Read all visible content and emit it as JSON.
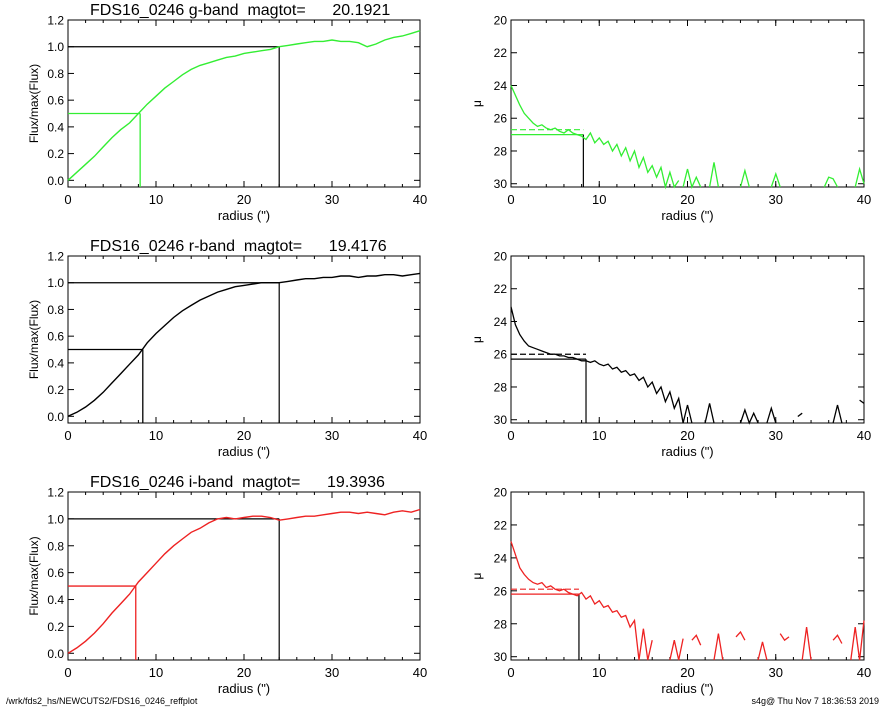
{
  "colors": {
    "g": "#33ee33",
    "r": "#000000",
    "i": "#ee2222",
    "axes": "#000000",
    "ref": "#000000"
  },
  "footer": {
    "left": "/wrk/fds2_hs/NEWCUTS2/FDS16_0246_reffplot",
    "right": "s4g@  Thu Nov  7 18:36:53 2019"
  },
  "chart_data": [
    {
      "type": "line",
      "panel": "g-band growth curve",
      "title": "FDS16_0246 g-band  magtot=      20.1921",
      "xlabel": "radius (\")",
      "ylabel": "Flux/max(Flux)",
      "xlim": [
        0,
        40
      ],
      "ylim": [
        -0.05,
        1.2
      ],
      "xticks": [
        "0",
        "10",
        "20",
        "30",
        "40"
      ],
      "yticks": [
        "0.0",
        "0.2",
        "0.4",
        "0.6",
        "0.8",
        "1.0",
        "1.2"
      ],
      "grid": false,
      "color": "#33ee33",
      "half_light_radius": 8.2,
      "half_light_flux": 0.5,
      "total_radius": 24.0,
      "total_flux": 1.0,
      "series": [
        {
          "x": [
            0,
            1,
            2,
            3,
            4,
            5,
            6,
            7,
            8,
            9,
            10,
            11,
            12,
            13,
            14,
            15,
            16,
            17,
            18,
            19,
            20,
            21,
            22,
            23,
            24,
            25,
            26,
            27,
            28,
            29,
            30,
            31,
            32,
            33,
            34,
            35,
            36,
            37,
            38,
            39,
            40
          ],
          "y": [
            0.0,
            0.06,
            0.12,
            0.18,
            0.25,
            0.32,
            0.38,
            0.43,
            0.5,
            0.57,
            0.63,
            0.69,
            0.74,
            0.79,
            0.83,
            0.86,
            0.88,
            0.9,
            0.92,
            0.93,
            0.95,
            0.96,
            0.97,
            0.98,
            1.0,
            1.01,
            1.02,
            1.03,
            1.04,
            1.04,
            1.05,
            1.04,
            1.04,
            1.03,
            1.0,
            1.02,
            1.05,
            1.07,
            1.08,
            1.1,
            1.12
          ]
        }
      ]
    },
    {
      "type": "line",
      "panel": "g-band surface brightness profile",
      "title": "",
      "xlabel": "radius (\")",
      "ylabel": "μ",
      "xlim": [
        0,
        40
      ],
      "ylim": [
        30.2,
        20
      ],
      "xticks": [
        "0",
        "10",
        "20",
        "30",
        "40"
      ],
      "yticks": [
        "20",
        "22",
        "24",
        "26",
        "28",
        "30"
      ],
      "grid": false,
      "color": "#33ee33",
      "mu_eff": 27.0,
      "mu_mean_eff": 26.7,
      "r_eff": 8.2,
      "series": [
        {
          "segments": [
            {
              "x": [
                0,
                0.5,
                1,
                1.5,
                2,
                2.5,
                3,
                3.5,
                4,
                4.5,
                5,
                5.5,
                6,
                6.5,
                7,
                7.5,
                8,
                8.5,
                9,
                9.5,
                10,
                10.5,
                11,
                11.5,
                12,
                12.5,
                13,
                13.5,
                14,
                14.5,
                15,
                15.5,
                16,
                16.5,
                17,
                17.5,
                18,
                18.5,
                19
              ],
              "y": [
                24.0,
                24.6,
                25.2,
                25.7,
                26.0,
                26.3,
                26.5,
                26.4,
                26.6,
                26.7,
                26.6,
                26.8,
                26.9,
                26.7,
                26.9,
                27.0,
                27.1,
                27.3,
                26.9,
                27.5,
                27.2,
                27.6,
                27.4,
                28.0,
                27.6,
                28.3,
                27.8,
                28.6,
                28.0,
                29.0,
                28.4,
                29.3,
                28.9,
                29.6,
                29.0,
                30.2,
                29.3,
                30.2,
                29.8
              ]
            },
            {
              "x": [
                19.5,
                20,
                20.5,
                21,
                21.5
              ],
              "y": [
                30.2,
                29.1,
                30.2,
                29.6,
                30.2
              ]
            },
            {
              "x": [
                22.5,
                23,
                23.5
              ],
              "y": [
                30.2,
                28.7,
                30.2
              ]
            },
            {
              "x": [
                26,
                26.5,
                27
              ],
              "y": [
                30.2,
                29.2,
                30.2
              ]
            },
            {
              "x": [
                29.5,
                30,
                30.5
              ],
              "y": [
                30.2,
                29.4,
                30.2
              ]
            },
            {
              "x": [
                35.5,
                36,
                36.5,
                37
              ],
              "y": [
                30.2,
                29.6,
                29.7,
                30.2
              ]
            },
            {
              "x": [
                39,
                39.5,
                40
              ],
              "y": [
                30.2,
                29.1,
                30.0
              ]
            }
          ]
        }
      ]
    },
    {
      "type": "line",
      "panel": "r-band growth curve",
      "title": "FDS16_0246 r-band  magtot=      19.4176",
      "xlabel": "radius (\")",
      "ylabel": "Flux/max(Flux)",
      "xlim": [
        0,
        40
      ],
      "ylim": [
        -0.05,
        1.2
      ],
      "xticks": [
        "0",
        "10",
        "20",
        "30",
        "40"
      ],
      "yticks": [
        "0.0",
        "0.2",
        "0.4",
        "0.6",
        "0.8",
        "1.0",
        "1.2"
      ],
      "grid": false,
      "color": "#000000",
      "half_light_radius": 8.5,
      "half_light_flux": 0.5,
      "total_radius": 24.0,
      "total_flux": 1.0,
      "series": [
        {
          "x": [
            0,
            1,
            2,
            3,
            4,
            5,
            6,
            7,
            8,
            9,
            10,
            11,
            12,
            13,
            14,
            15,
            16,
            17,
            18,
            19,
            20,
            21,
            22,
            23,
            24,
            25,
            26,
            27,
            28,
            29,
            30,
            31,
            32,
            33,
            34,
            35,
            36,
            37,
            38,
            39,
            40
          ],
          "y": [
            0.0,
            0.03,
            0.07,
            0.12,
            0.18,
            0.25,
            0.32,
            0.39,
            0.46,
            0.55,
            0.62,
            0.68,
            0.74,
            0.79,
            0.83,
            0.87,
            0.9,
            0.93,
            0.95,
            0.97,
            0.98,
            0.99,
            1.0,
            1.0,
            1.0,
            1.01,
            1.02,
            1.03,
            1.03,
            1.04,
            1.04,
            1.05,
            1.05,
            1.04,
            1.05,
            1.05,
            1.06,
            1.06,
            1.05,
            1.06,
            1.07
          ]
        }
      ]
    },
    {
      "type": "line",
      "panel": "r-band surface brightness profile",
      "title": "",
      "xlabel": "radius (\")",
      "ylabel": "μ",
      "xlim": [
        0,
        40
      ],
      "ylim": [
        30.2,
        20
      ],
      "xticks": [
        "0",
        "10",
        "20",
        "30",
        "40"
      ],
      "yticks": [
        "20",
        "22",
        "24",
        "26",
        "28",
        "30"
      ],
      "grid": false,
      "color": "#000000",
      "mu_eff": 26.3,
      "mu_mean_eff": 26.0,
      "r_eff": 8.5,
      "series": [
        {
          "segments": [
            {
              "x": [
                0,
                0.5,
                1,
                1.5,
                2,
                2.5,
                3,
                3.5,
                4,
                4.5,
                5,
                5.5,
                6,
                6.5,
                7,
                7.5,
                8,
                8.5,
                9,
                9.5,
                10,
                10.5,
                11,
                11.5,
                12,
                12.5,
                13,
                13.5,
                14,
                14.5,
                15,
                15.5,
                16,
                16.5,
                17,
                17.5,
                18,
                18.5,
                19,
                19.5,
                20,
                20.5
              ],
              "y": [
                23.1,
                24.2,
                24.8,
                25.2,
                25.5,
                25.6,
                25.7,
                25.8,
                25.9,
                26.0,
                26.0,
                26.1,
                26.1,
                26.2,
                26.2,
                26.3,
                26.4,
                26.4,
                26.5,
                26.4,
                26.6,
                26.7,
                26.6,
                26.9,
                26.8,
                27.1,
                27.0,
                27.3,
                27.2,
                27.6,
                27.4,
                28.0,
                27.7,
                28.4,
                28.0,
                28.9,
                28.3,
                29.3,
                28.7,
                30.2,
                29.1,
                30.2
              ]
            },
            {
              "x": [
                22,
                22.5,
                23
              ],
              "y": [
                30.2,
                29.0,
                30.2
              ]
            },
            {
              "x": [
                26,
                26.5,
                27,
                27.5,
                28
              ],
              "y": [
                30.2,
                29.4,
                30.2,
                29.6,
                30.2
              ]
            },
            {
              "x": [
                29,
                29.5,
                30
              ],
              "y": [
                30.2,
                29.3,
                30.2
              ]
            },
            {
              "x": [
                32.5,
                33
              ],
              "y": [
                29.8,
                29.6
              ]
            },
            {
              "x": [
                36.5,
                37,
                37.5
              ],
              "y": [
                30.2,
                29.1,
                30.2
              ]
            },
            {
              "x": [
                39.5,
                40
              ],
              "y": [
                28.8,
                29.0
              ]
            }
          ]
        }
      ]
    },
    {
      "type": "line",
      "panel": "i-band growth curve",
      "title": "FDS16_0246 i-band  magtot=      19.3936",
      "xlabel": "radius (\")",
      "ylabel": "Flux/max(Flux)",
      "xlim": [
        0,
        40
      ],
      "ylim": [
        -0.05,
        1.2
      ],
      "xticks": [
        "0",
        "10",
        "20",
        "30",
        "40"
      ],
      "yticks": [
        "0.0",
        "0.2",
        "0.4",
        "0.6",
        "0.8",
        "1.0",
        "1.2"
      ],
      "grid": false,
      "color": "#ee2222",
      "half_light_radius": 7.7,
      "half_light_flux": 0.5,
      "total_radius": 24.0,
      "total_flux": 1.0,
      "series": [
        {
          "x": [
            0,
            1,
            2,
            3,
            4,
            5,
            6,
            7,
            8,
            9,
            10,
            11,
            12,
            13,
            14,
            15,
            16,
            17,
            18,
            19,
            20,
            21,
            22,
            23,
            24,
            25,
            26,
            27,
            28,
            29,
            30,
            31,
            32,
            33,
            34,
            35,
            36,
            37,
            38,
            39,
            40
          ],
          "y": [
            0.0,
            0.04,
            0.09,
            0.15,
            0.22,
            0.3,
            0.37,
            0.44,
            0.53,
            0.6,
            0.67,
            0.74,
            0.8,
            0.85,
            0.9,
            0.93,
            0.97,
            1.0,
            1.01,
            1.0,
            1.01,
            1.02,
            1.02,
            1.01,
            0.99,
            1.0,
            1.01,
            1.02,
            1.02,
            1.03,
            1.04,
            1.05,
            1.05,
            1.04,
            1.05,
            1.04,
            1.03,
            1.05,
            1.06,
            1.05,
            1.07
          ]
        }
      ]
    },
    {
      "type": "line",
      "panel": "i-band surface brightness profile",
      "title": "",
      "xlabel": "radius (\")",
      "ylabel": "μ",
      "xlim": [
        0,
        40
      ],
      "ylim": [
        30.2,
        20
      ],
      "xticks": [
        "0",
        "10",
        "20",
        "30",
        "40"
      ],
      "yticks": [
        "20",
        "22",
        "24",
        "26",
        "28",
        "30"
      ],
      "grid": false,
      "color": "#ee2222",
      "mu_eff": 26.2,
      "mu_mean_eff": 25.9,
      "r_eff": 7.7,
      "series": [
        {
          "segments": [
            {
              "x": [
                0,
                0.5,
                1,
                1.5,
                2,
                2.5,
                3,
                3.5,
                4,
                4.5,
                5,
                5.5,
                6,
                6.5,
                7,
                7.5,
                8,
                8.5,
                9,
                9.5,
                10,
                10.5,
                11,
                11.5,
                12,
                12.5,
                13,
                13.5,
                14,
                14.5,
                15,
                15.5,
                16
              ],
              "y": [
                23.0,
                23.8,
                24.6,
                25.0,
                25.3,
                25.5,
                25.6,
                25.5,
                25.8,
                25.7,
                25.9,
                26.0,
                25.9,
                26.1,
                26.2,
                26.3,
                26.1,
                26.5,
                26.3,
                26.8,
                26.6,
                27.0,
                26.9,
                27.3,
                27.2,
                27.6,
                27.5,
                28.2,
                27.8,
                30.2,
                28.3,
                30.2,
                29.0
              ]
            },
            {
              "x": [
                18,
                18.5,
                19,
                19.5
              ],
              "y": [
                30.2,
                29.0,
                30.2,
                28.9
              ]
            },
            {
              "x": [
                20.5,
                21,
                21.5
              ],
              "y": [
                29.0,
                28.7,
                29.3
              ]
            },
            {
              "x": [
                23,
                23.5,
                24
              ],
              "y": [
                30.2,
                28.6,
                30.2
              ]
            },
            {
              "x": [
                25.5,
                26,
                26.5
              ],
              "y": [
                28.8,
                28.5,
                29.0
              ]
            },
            {
              "x": [
                28,
                28.5,
                29
              ],
              "y": [
                30.2,
                29.1,
                30.2
              ]
            },
            {
              "x": [
                30.5,
                31,
                31.5
              ],
              "y": [
                28.6,
                29.0,
                28.8
              ]
            },
            {
              "x": [
                33,
                33.5,
                34
              ],
              "y": [
                30.2,
                28.2,
                30.2
              ]
            },
            {
              "x": [
                36.5,
                37,
                37.5
              ],
              "y": [
                29.0,
                28.7,
                29.2
              ]
            },
            {
              "x": [
                38.5,
                39,
                39.5,
                40
              ],
              "y": [
                30.2,
                28.2,
                30.2,
                27.8
              ]
            }
          ]
        }
      ]
    }
  ]
}
